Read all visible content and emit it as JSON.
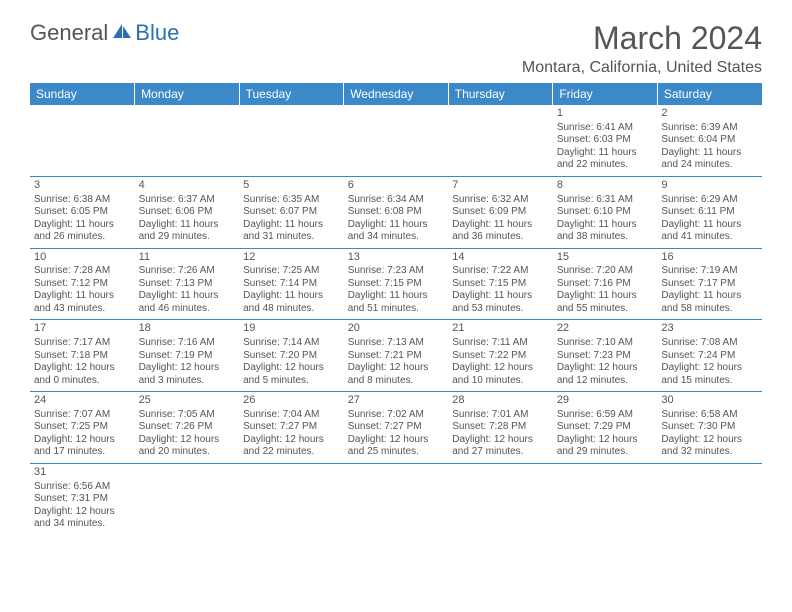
{
  "logo": {
    "text_general": "General",
    "text_blue": "Blue"
  },
  "title": "March 2024",
  "location": "Montara, California, United States",
  "headers": [
    "Sunday",
    "Monday",
    "Tuesday",
    "Wednesday",
    "Thursday",
    "Friday",
    "Saturday"
  ],
  "colors": {
    "header_bg": "#3b89c9",
    "header_text": "#ffffff",
    "body_text": "#555555",
    "row_border": "#3b89c9",
    "logo_blue": "#2b6fb5"
  },
  "weeks": [
    [
      null,
      null,
      null,
      null,
      null,
      {
        "n": "1",
        "sr": "Sunrise: 6:41 AM",
        "ss": "Sunset: 6:03 PM",
        "d1": "Daylight: 11 hours",
        "d2": "and 22 minutes."
      },
      {
        "n": "2",
        "sr": "Sunrise: 6:39 AM",
        "ss": "Sunset: 6:04 PM",
        "d1": "Daylight: 11 hours",
        "d2": "and 24 minutes."
      }
    ],
    [
      {
        "n": "3",
        "sr": "Sunrise: 6:38 AM",
        "ss": "Sunset: 6:05 PM",
        "d1": "Daylight: 11 hours",
        "d2": "and 26 minutes."
      },
      {
        "n": "4",
        "sr": "Sunrise: 6:37 AM",
        "ss": "Sunset: 6:06 PM",
        "d1": "Daylight: 11 hours",
        "d2": "and 29 minutes."
      },
      {
        "n": "5",
        "sr": "Sunrise: 6:35 AM",
        "ss": "Sunset: 6:07 PM",
        "d1": "Daylight: 11 hours",
        "d2": "and 31 minutes."
      },
      {
        "n": "6",
        "sr": "Sunrise: 6:34 AM",
        "ss": "Sunset: 6:08 PM",
        "d1": "Daylight: 11 hours",
        "d2": "and 34 minutes."
      },
      {
        "n": "7",
        "sr": "Sunrise: 6:32 AM",
        "ss": "Sunset: 6:09 PM",
        "d1": "Daylight: 11 hours",
        "d2": "and 36 minutes."
      },
      {
        "n": "8",
        "sr": "Sunrise: 6:31 AM",
        "ss": "Sunset: 6:10 PM",
        "d1": "Daylight: 11 hours",
        "d2": "and 38 minutes."
      },
      {
        "n": "9",
        "sr": "Sunrise: 6:29 AM",
        "ss": "Sunset: 6:11 PM",
        "d1": "Daylight: 11 hours",
        "d2": "and 41 minutes."
      }
    ],
    [
      {
        "n": "10",
        "sr": "Sunrise: 7:28 AM",
        "ss": "Sunset: 7:12 PM",
        "d1": "Daylight: 11 hours",
        "d2": "and 43 minutes."
      },
      {
        "n": "11",
        "sr": "Sunrise: 7:26 AM",
        "ss": "Sunset: 7:13 PM",
        "d1": "Daylight: 11 hours",
        "d2": "and 46 minutes."
      },
      {
        "n": "12",
        "sr": "Sunrise: 7:25 AM",
        "ss": "Sunset: 7:14 PM",
        "d1": "Daylight: 11 hours",
        "d2": "and 48 minutes."
      },
      {
        "n": "13",
        "sr": "Sunrise: 7:23 AM",
        "ss": "Sunset: 7:15 PM",
        "d1": "Daylight: 11 hours",
        "d2": "and 51 minutes."
      },
      {
        "n": "14",
        "sr": "Sunrise: 7:22 AM",
        "ss": "Sunset: 7:15 PM",
        "d1": "Daylight: 11 hours",
        "d2": "and 53 minutes."
      },
      {
        "n": "15",
        "sr": "Sunrise: 7:20 AM",
        "ss": "Sunset: 7:16 PM",
        "d1": "Daylight: 11 hours",
        "d2": "and 55 minutes."
      },
      {
        "n": "16",
        "sr": "Sunrise: 7:19 AM",
        "ss": "Sunset: 7:17 PM",
        "d1": "Daylight: 11 hours",
        "d2": "and 58 minutes."
      }
    ],
    [
      {
        "n": "17",
        "sr": "Sunrise: 7:17 AM",
        "ss": "Sunset: 7:18 PM",
        "d1": "Daylight: 12 hours",
        "d2": "and 0 minutes."
      },
      {
        "n": "18",
        "sr": "Sunrise: 7:16 AM",
        "ss": "Sunset: 7:19 PM",
        "d1": "Daylight: 12 hours",
        "d2": "and 3 minutes."
      },
      {
        "n": "19",
        "sr": "Sunrise: 7:14 AM",
        "ss": "Sunset: 7:20 PM",
        "d1": "Daylight: 12 hours",
        "d2": "and 5 minutes."
      },
      {
        "n": "20",
        "sr": "Sunrise: 7:13 AM",
        "ss": "Sunset: 7:21 PM",
        "d1": "Daylight: 12 hours",
        "d2": "and 8 minutes."
      },
      {
        "n": "21",
        "sr": "Sunrise: 7:11 AM",
        "ss": "Sunset: 7:22 PM",
        "d1": "Daylight: 12 hours",
        "d2": "and 10 minutes."
      },
      {
        "n": "22",
        "sr": "Sunrise: 7:10 AM",
        "ss": "Sunset: 7:23 PM",
        "d1": "Daylight: 12 hours",
        "d2": "and 12 minutes."
      },
      {
        "n": "23",
        "sr": "Sunrise: 7:08 AM",
        "ss": "Sunset: 7:24 PM",
        "d1": "Daylight: 12 hours",
        "d2": "and 15 minutes."
      }
    ],
    [
      {
        "n": "24",
        "sr": "Sunrise: 7:07 AM",
        "ss": "Sunset: 7:25 PM",
        "d1": "Daylight: 12 hours",
        "d2": "and 17 minutes."
      },
      {
        "n": "25",
        "sr": "Sunrise: 7:05 AM",
        "ss": "Sunset: 7:26 PM",
        "d1": "Daylight: 12 hours",
        "d2": "and 20 minutes."
      },
      {
        "n": "26",
        "sr": "Sunrise: 7:04 AM",
        "ss": "Sunset: 7:27 PM",
        "d1": "Daylight: 12 hours",
        "d2": "and 22 minutes."
      },
      {
        "n": "27",
        "sr": "Sunrise: 7:02 AM",
        "ss": "Sunset: 7:27 PM",
        "d1": "Daylight: 12 hours",
        "d2": "and 25 minutes."
      },
      {
        "n": "28",
        "sr": "Sunrise: 7:01 AM",
        "ss": "Sunset: 7:28 PM",
        "d1": "Daylight: 12 hours",
        "d2": "and 27 minutes."
      },
      {
        "n": "29",
        "sr": "Sunrise: 6:59 AM",
        "ss": "Sunset: 7:29 PM",
        "d1": "Daylight: 12 hours",
        "d2": "and 29 minutes."
      },
      {
        "n": "30",
        "sr": "Sunrise: 6:58 AM",
        "ss": "Sunset: 7:30 PM",
        "d1": "Daylight: 12 hours",
        "d2": "and 32 minutes."
      }
    ],
    [
      {
        "n": "31",
        "sr": "Sunrise: 6:56 AM",
        "ss": "Sunset: 7:31 PM",
        "d1": "Daylight: 12 hours",
        "d2": "and 34 minutes."
      },
      null,
      null,
      null,
      null,
      null,
      null
    ]
  ]
}
